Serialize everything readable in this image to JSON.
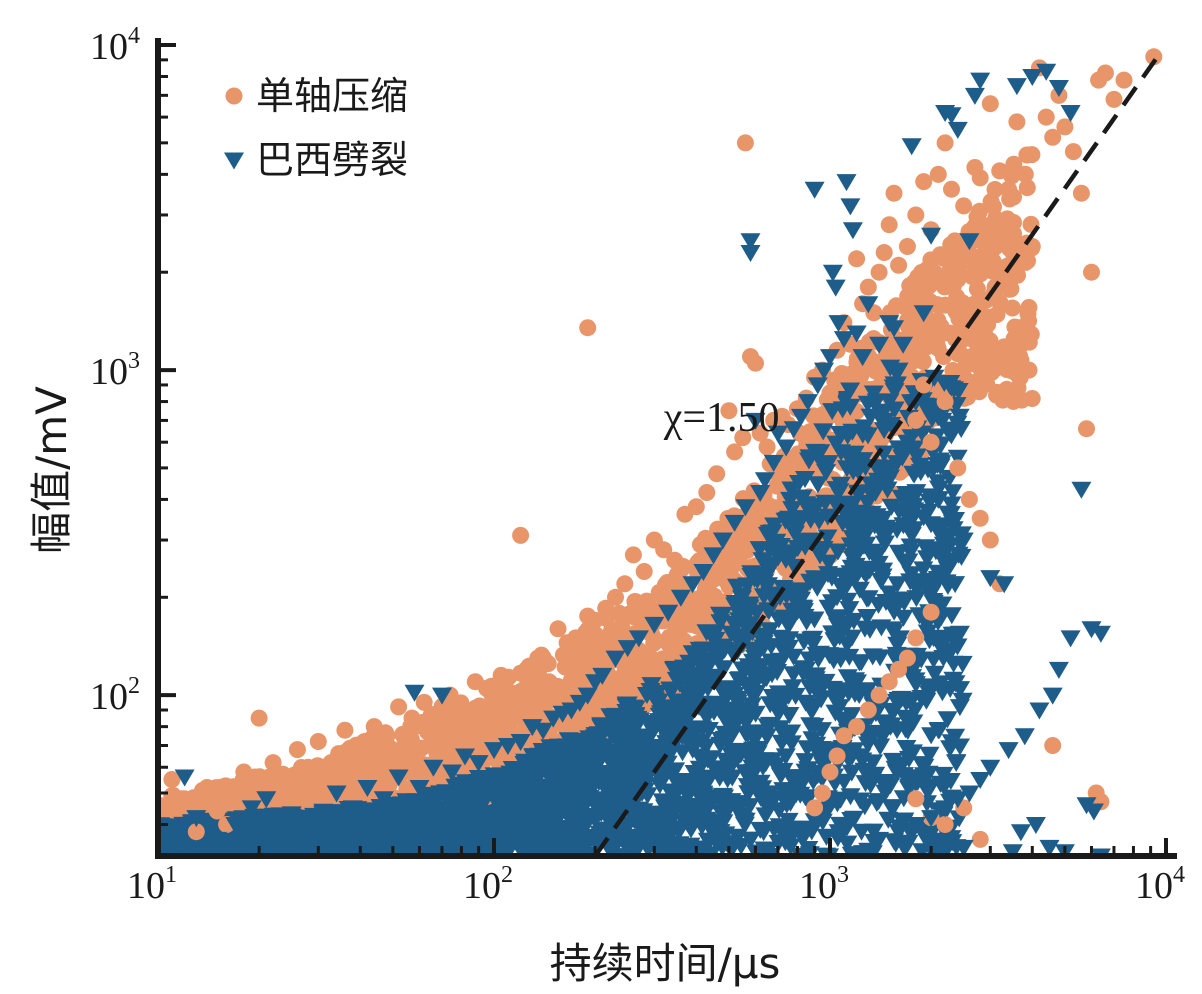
{
  "chart_data": {
    "type": "scatter",
    "xscale": "log",
    "yscale": "log",
    "xlabel": "持续时间/μs",
    "ylabel": "幅值/mV",
    "xlim": [
      10,
      10000
    ],
    "ylim": [
      32,
      10000
    ],
    "xticks": [
      {
        "value": 10,
        "base": "10",
        "exp": "1"
      },
      {
        "value": 100,
        "base": "10",
        "exp": "2"
      },
      {
        "value": 1000,
        "base": "10",
        "exp": "3"
      },
      {
        "value": 10000,
        "base": "10",
        "exp": "4"
      }
    ],
    "yticks": [
      {
        "value": 100,
        "base": "10",
        "exp": "2"
      },
      {
        "value": 1000,
        "base": "10",
        "exp": "3"
      },
      {
        "value": 10000,
        "base": "10",
        "exp": "4"
      }
    ],
    "legend": {
      "position": "top-left"
    },
    "series": [
      {
        "name": "单轴压缩",
        "marker": "circle",
        "color": "#E8956A",
        "points": [
          [
            10.5,
            45
          ],
          [
            11,
            55
          ],
          [
            12,
            48
          ],
          [
            13,
            38
          ],
          [
            14,
            52
          ],
          [
            15,
            44
          ],
          [
            16,
            40
          ],
          [
            17,
            50
          ],
          [
            18,
            58
          ],
          [
            19,
            47
          ],
          [
            20,
            85
          ],
          [
            22,
            62
          ],
          [
            24,
            55
          ],
          [
            26,
            68
          ],
          [
            28,
            60
          ],
          [
            30,
            72
          ],
          [
            33,
            58
          ],
          [
            36,
            78
          ],
          [
            40,
            70
          ],
          [
            44,
            80
          ],
          [
            48,
            75
          ],
          [
            52,
            92
          ],
          [
            57,
            85
          ],
          [
            62,
            95
          ],
          [
            68,
            88
          ],
          [
            74,
            100
          ],
          [
            80,
            92
          ],
          [
            88,
            110
          ],
          [
            95,
            105
          ],
          [
            105,
            115
          ],
          [
            115,
            100
          ],
          [
            120,
            310
          ],
          [
            125,
            120
          ],
          [
            135,
            130
          ],
          [
            145,
            125
          ],
          [
            155,
            160
          ],
          [
            165,
            145
          ],
          [
            175,
            150
          ],
          [
            190,
            1350
          ],
          [
            190,
            175
          ],
          [
            200,
            170
          ],
          [
            215,
            185
          ],
          [
            230,
            200
          ],
          [
            245,
            220
          ],
          [
            260,
            270
          ],
          [
            280,
            240
          ],
          [
            300,
            300
          ],
          [
            320,
            280
          ],
          [
            345,
            260
          ],
          [
            370,
            360
          ],
          [
            400,
            380
          ],
          [
            430,
            420
          ],
          [
            460,
            480
          ],
          [
            500,
            750
          ],
          [
            520,
            560
          ],
          [
            550,
            620
          ],
          [
            560,
            5000
          ],
          [
            580,
            1100
          ],
          [
            600,
            1050
          ],
          [
            620,
            640
          ],
          [
            650,
            580
          ],
          [
            680,
            700
          ],
          [
            720,
            720
          ],
          [
            750,
            680
          ],
          [
            800,
            760
          ],
          [
            850,
            820
          ],
          [
            900,
            950
          ],
          [
            950,
            1000
          ],
          [
            1000,
            850
          ],
          [
            1050,
            1150
          ],
          [
            1100,
            1400
          ],
          [
            1150,
            1200
          ],
          [
            1200,
            2200
          ],
          [
            1250,
            1600
          ],
          [
            1300,
            1800
          ],
          [
            1350,
            1500
          ],
          [
            1400,
            2000
          ],
          [
            1450,
            2300
          ],
          [
            1500,
            2800
          ],
          [
            1550,
            3500
          ],
          [
            1600,
            2100
          ],
          [
            1700,
            2400
          ],
          [
            1800,
            3000
          ],
          [
            1900,
            3800
          ],
          [
            2000,
            2700
          ],
          [
            2100,
            4000
          ],
          [
            2200,
            5000
          ],
          [
            2300,
            3600
          ],
          [
            2400,
            1900
          ],
          [
            2500,
            3200
          ],
          [
            2600,
            2600
          ],
          [
            2700,
            4200
          ],
          [
            2800,
            3900
          ],
          [
            2900,
            2300
          ],
          [
            3000,
            6600
          ],
          [
            3100,
            1800
          ],
          [
            3200,
            4100
          ],
          [
            3400,
            3600
          ],
          [
            3600,
            5800
          ],
          [
            3800,
            2200
          ],
          [
            4000,
            2400
          ],
          [
            4200,
            8500
          ],
          [
            4400,
            6000
          ],
          [
            4600,
            5200
          ],
          [
            4800,
            7000
          ],
          [
            5000,
            5600
          ],
          [
            5300,
            4700
          ],
          [
            5600,
            3500
          ],
          [
            5800,
            660
          ],
          [
            6000,
            2000
          ],
          [
            6300,
            7800
          ],
          [
            6600,
            8200
          ],
          [
            7000,
            6800
          ],
          [
            7500,
            7800
          ],
          [
            9200,
            9200
          ],
          [
            1800,
            700
          ],
          [
            1900,
            900
          ],
          [
            2000,
            600
          ],
          [
            2200,
            800
          ],
          [
            2400,
            500
          ],
          [
            2600,
            400
          ],
          [
            2800,
            350
          ],
          [
            3000,
            300
          ],
          [
            3200,
            220
          ],
          [
            2000,
            180
          ],
          [
            1800,
            150
          ],
          [
            1700,
            130
          ],
          [
            1600,
            120
          ],
          [
            1500,
            110
          ],
          [
            1400,
            100
          ],
          [
            1300,
            90
          ],
          [
            1200,
            80
          ],
          [
            1100,
            75
          ],
          [
            1050,
            65
          ],
          [
            1000,
            58
          ],
          [
            950,
            50
          ],
          [
            900,
            45
          ],
          [
            1800,
            48
          ],
          [
            2000,
            42
          ],
          [
            2200,
            40
          ],
          [
            2500,
            45
          ],
          [
            2800,
            36
          ],
          [
            4600,
            70
          ],
          [
            6200,
            50
          ],
          [
            6400,
            47
          ]
        ]
      },
      {
        "name": "巴西劈裂",
        "marker": "triangle-down",
        "color": "#1E5C8A",
        "points": [
          [
            11,
            38
          ],
          [
            12,
            56
          ],
          [
            13,
            42
          ],
          [
            15,
            36
          ],
          [
            17,
            40
          ],
          [
            19,
            45
          ],
          [
            21,
            48
          ],
          [
            24,
            35
          ],
          [
            27,
            42
          ],
          [
            30,
            38
          ],
          [
            34,
            50
          ],
          [
            38,
            45
          ],
          [
            42,
            52
          ],
          [
            47,
            48
          ],
          [
            52,
            56
          ],
          [
            58,
            102
          ],
          [
            60,
            52
          ],
          [
            66,
            60
          ],
          [
            70,
            100
          ],
          [
            75,
            58
          ],
          [
            82,
            65
          ],
          [
            90,
            62
          ],
          [
            100,
            68
          ],
          [
            110,
            70
          ],
          [
            120,
            72
          ],
          [
            130,
            80
          ],
          [
            140,
            78
          ],
          [
            150,
            85
          ],
          [
            160,
            88
          ],
          [
            170,
            90
          ],
          [
            180,
            95
          ],
          [
            190,
            100
          ],
          [
            200,
            110
          ],
          [
            210,
            115
          ],
          [
            230,
            130
          ],
          [
            250,
            140
          ],
          [
            270,
            150
          ],
          [
            300,
            165
          ],
          [
            330,
            180
          ],
          [
            360,
            200
          ],
          [
            390,
            220
          ],
          [
            420,
            240
          ],
          [
            450,
            270
          ],
          [
            480,
            300
          ],
          [
            520,
            340
          ],
          [
            560,
            380
          ],
          [
            580,
            2300
          ],
          [
            580,
            2500
          ],
          [
            600,
            700
          ],
          [
            620,
            420
          ],
          [
            640,
            460
          ],
          [
            680,
            520
          ],
          [
            700,
            640
          ],
          [
            740,
            580
          ],
          [
            780,
            660
          ],
          [
            820,
            720
          ],
          [
            860,
            800
          ],
          [
            900,
            3600
          ],
          [
            920,
            900
          ],
          [
            960,
            1000
          ],
          [
            1000,
            1100
          ],
          [
            1020,
            2000
          ],
          [
            1040,
            1800
          ],
          [
            1060,
            1400
          ],
          [
            1100,
            1250
          ],
          [
            1120,
            3800
          ],
          [
            1150,
            3200
          ],
          [
            1170,
            2700
          ],
          [
            1200,
            1300
          ],
          [
            1250,
            1100
          ],
          [
            1300,
            1600
          ],
          [
            1350,
            850
          ],
          [
            1400,
            1200
          ],
          [
            1450,
            700
          ],
          [
            1500,
            1400
          ],
          [
            1550,
            1350
          ],
          [
            1600,
            1000
          ],
          [
            1650,
            1200
          ],
          [
            1700,
            600
          ],
          [
            1750,
            4900
          ],
          [
            1800,
            800
          ],
          [
            1900,
            1500
          ],
          [
            2000,
            2600
          ],
          [
            2100,
            400
          ],
          [
            2200,
            6200
          ],
          [
            2300,
            6100
          ],
          [
            2400,
            5500
          ],
          [
            2500,
            300
          ],
          [
            2600,
            2500
          ],
          [
            2700,
            7000
          ],
          [
            2800,
            7800
          ],
          [
            3000,
            230
          ],
          [
            3300,
            220
          ],
          [
            3600,
            7500
          ],
          [
            4000,
            8000
          ],
          [
            4400,
            8300
          ],
          [
            4800,
            7400
          ],
          [
            5200,
            6200
          ],
          [
            5600,
            430
          ],
          [
            6000,
            160
          ],
          [
            6400,
            155
          ],
          [
            5200,
            150
          ],
          [
            4800,
            120
          ],
          [
            4600,
            100
          ],
          [
            4200,
            90
          ],
          [
            3800,
            75
          ],
          [
            3400,
            68
          ],
          [
            3000,
            60
          ],
          [
            2800,
            55
          ],
          [
            2600,
            50
          ],
          [
            2400,
            48
          ],
          [
            2200,
            45
          ],
          [
            2000,
            42
          ],
          [
            1800,
            40
          ],
          [
            1600,
            38
          ],
          [
            1400,
            36
          ],
          [
            6400,
            32
          ],
          [
            4500,
            34
          ],
          [
            3500,
            33
          ],
          [
            2500,
            34
          ],
          [
            5000,
            33
          ],
          [
            3700,
            38
          ],
          [
            4100,
            40
          ],
          [
            5800,
            46
          ],
          [
            6100,
            44
          ]
        ]
      }
    ],
    "dense_clouds": [
      {
        "series": 0,
        "count": 1800,
        "seed": 7,
        "x_range": [
          10,
          4000
        ],
        "lower_bound": {
          "x": [
            10,
            100,
            600,
            1500,
            2500
          ],
          "y": [
            34,
            45,
            150,
            400,
            800
          ]
        },
        "upper_bound": {
          "x": [
            10,
            30,
            100,
            300,
            600,
            1000,
            2000,
            4000
          ],
          "y": [
            48,
            62,
            110,
            210,
            450,
            900,
            2200,
            5000
          ]
        }
      },
      {
        "series": 1,
        "count": 2600,
        "seed": 13,
        "x_range": [
          10,
          2500
        ],
        "lower_bound": {
          "x": [
            10,
            100,
            2500
          ],
          "y": [
            32,
            32,
            32
          ]
        },
        "upper_bound": {
          "x": [
            10,
            50,
            100,
            200,
            400,
            700,
            1000,
            1500,
            2500
          ],
          "y": [
            40,
            46,
            58,
            80,
            140,
            350,
            800,
            1100,
            900
          ]
        }
      }
    ],
    "fit_line": {
      "style": "dashed",
      "color": "#1a1a1a",
      "x": [
        200,
        9500
      ],
      "y": [
        32,
        9300
      ]
    },
    "annotations": [
      {
        "text": "χ=1.50",
        "x": 320,
        "y": 650
      }
    ]
  }
}
